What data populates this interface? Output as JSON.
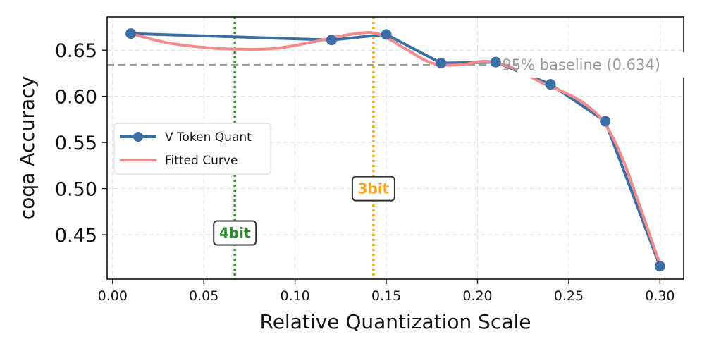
{
  "chart_data": {
    "type": "line",
    "xlabel": "Relative Quantization Scale",
    "ylabel": "coqa Accuracy",
    "xlim": [
      -0.003,
      0.313
    ],
    "ylim": [
      0.402,
      0.686
    ],
    "xticks": [
      0.0,
      0.05,
      0.1,
      0.15,
      0.2,
      0.25,
      0.3
    ],
    "xtick_labels": [
      "0.00",
      "0.05",
      "0.10",
      "0.15",
      "0.20",
      "0.25",
      "0.30"
    ],
    "yticks": [
      0.45,
      0.5,
      0.55,
      0.6,
      0.65
    ],
    "ytick_labels": [
      "0.45",
      "0.50",
      "0.55",
      "0.60",
      "0.65"
    ],
    "grid": true,
    "series": [
      {
        "name": "V Token Quant",
        "color": "#3a6ea5",
        "style": "line-with-markers",
        "x": [
          0.01,
          0.12,
          0.15,
          0.18,
          0.21,
          0.24,
          0.27,
          0.3
        ],
        "y": [
          0.668,
          0.661,
          0.667,
          0.636,
          0.637,
          0.613,
          0.573,
          0.416
        ]
      },
      {
        "name": "Fitted Curve",
        "color": "#f28b8b",
        "style": "line",
        "x": [
          0.01,
          0.03,
          0.05,
          0.07,
          0.09,
          0.11,
          0.13,
          0.145,
          0.16,
          0.175,
          0.19,
          0.205,
          0.22,
          0.235,
          0.25,
          0.26,
          0.27,
          0.28,
          0.29,
          0.3
        ],
        "y": [
          0.668,
          0.658,
          0.653,
          0.651,
          0.652,
          0.659,
          0.667,
          0.668,
          0.652,
          0.636,
          0.634,
          0.638,
          0.63,
          0.615,
          0.602,
          0.59,
          0.57,
          0.53,
          0.475,
          0.418
        ]
      }
    ],
    "reference_line": {
      "y": 0.634,
      "label": "95% baseline (0.634)",
      "color": "#9e9e9e",
      "style": "dashed"
    },
    "vertical_markers": [
      {
        "x": 0.067,
        "label": "4bit",
        "color": "#2e8b2e",
        "label_y": 0.452
      },
      {
        "x": 0.143,
        "label": "3bit",
        "color": "#f5a623",
        "label_y": 0.5
      }
    ],
    "legend": {
      "position": "center-left",
      "entries": [
        "V Token Quant",
        "Fitted Curve"
      ]
    }
  }
}
